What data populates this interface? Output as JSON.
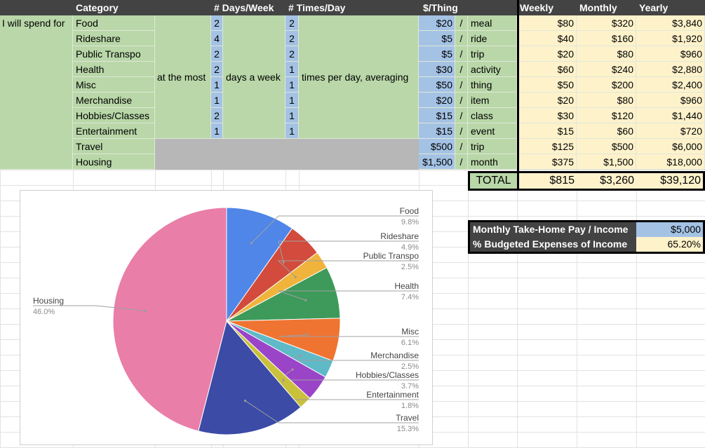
{
  "headers": {
    "category": "Category",
    "days_week": "# Days/Week",
    "times_day": "# Times/Day",
    "per_thing": "$/Thing",
    "weekly": "Weekly",
    "monthly": "Monthly",
    "yearly": "Yearly"
  },
  "phrases": {
    "i_will_spend_for": "I will spend for",
    "at_the_most": "at the most",
    "days_a_week": "days a week",
    "times_per_day": "times per day, averaging",
    "slash": "/"
  },
  "rows": [
    {
      "category": "Food",
      "days": "2",
      "times": "2",
      "cost": "$20",
      "unit": "meal",
      "weekly": "$80",
      "monthly": "$320",
      "yearly": "$3,840"
    },
    {
      "category": "Rideshare",
      "days": "4",
      "times": "2",
      "cost": "$5",
      "unit": "ride",
      "weekly": "$40",
      "monthly": "$160",
      "yearly": "$1,920"
    },
    {
      "category": "Public Transpo",
      "days": "2",
      "times": "2",
      "cost": "$5",
      "unit": "trip",
      "weekly": "$20",
      "monthly": "$80",
      "yearly": "$960"
    },
    {
      "category": "Health",
      "days": "2",
      "times": "1",
      "cost": "$30",
      "unit": "activity",
      "weekly": "$60",
      "monthly": "$240",
      "yearly": "$2,880"
    },
    {
      "category": "Misc",
      "days": "1",
      "times": "1",
      "cost": "$50",
      "unit": "thing",
      "weekly": "$50",
      "monthly": "$200",
      "yearly": "$2,400"
    },
    {
      "category": "Merchandise",
      "days": "1",
      "times": "1",
      "cost": "$20",
      "unit": "item",
      "weekly": "$20",
      "monthly": "$80",
      "yearly": "$960"
    },
    {
      "category": "Hobbies/Classes",
      "days": "2",
      "times": "1",
      "cost": "$15",
      "unit": "class",
      "weekly": "$30",
      "monthly": "$120",
      "yearly": "$1,440"
    },
    {
      "category": "Entertainment",
      "days": "1",
      "times": "1",
      "cost": "$15",
      "unit": "event",
      "weekly": "$15",
      "monthly": "$60",
      "yearly": "$720"
    },
    {
      "category": "Travel",
      "days": "",
      "times": "",
      "cost": "$500",
      "unit": "trip",
      "weekly": "$125",
      "monthly": "$500",
      "yearly": "$6,000"
    },
    {
      "category": "Housing",
      "days": "",
      "times": "",
      "cost": "$1,500",
      "unit": "month",
      "weekly": "$375",
      "monthly": "$1,500",
      "yearly": "$18,000"
    }
  ],
  "totals": {
    "label": "TOTAL",
    "weekly": "$815",
    "monthly": "$3,260",
    "yearly": "$39,120"
  },
  "income": {
    "label": "Monthly Take-Home Pay / Income",
    "value": "$5,000",
    "pct_label": "% Budgeted Expenses of Income",
    "pct_value": "65.20%"
  },
  "colors": {
    "header": "#434343",
    "green": "#b9d7a8",
    "blue": "#a4c2e4",
    "yellow": "#fef2cb",
    "gray": "#b7b7b7"
  },
  "chart_data": {
    "type": "pie",
    "title": "",
    "slices": [
      {
        "label": "Food",
        "value": 9.8,
        "pct": "9.8%",
        "color": "#4f86e8"
      },
      {
        "label": "Rideshare",
        "value": 4.9,
        "pct": "4.9%",
        "color": "#d24b3c"
      },
      {
        "label": "Public Transpo",
        "value": 2.5,
        "pct": "2.5%",
        "color": "#f0b43c"
      },
      {
        "label": "Health",
        "value": 7.4,
        "pct": "7.4%",
        "color": "#3e9a5a"
      },
      {
        "label": "Misc",
        "value": 6.1,
        "pct": "6.1%",
        "color": "#ef7431"
      },
      {
        "label": "Merchandise",
        "value": 2.5,
        "pct": "2.5%",
        "color": "#5fb9c7"
      },
      {
        "label": "Hobbies/Classes",
        "value": 3.7,
        "pct": "3.7%",
        "color": "#9a44c8"
      },
      {
        "label": "Entertainment",
        "value": 1.8,
        "pct": "1.8%",
        "color": "#c9c13c"
      },
      {
        "label": "Travel",
        "value": 15.3,
        "pct": "15.3%",
        "color": "#3b4ba6"
      },
      {
        "label": "Housing",
        "value": 46.0,
        "pct": "46.0%",
        "color": "#e97ea8"
      }
    ]
  }
}
